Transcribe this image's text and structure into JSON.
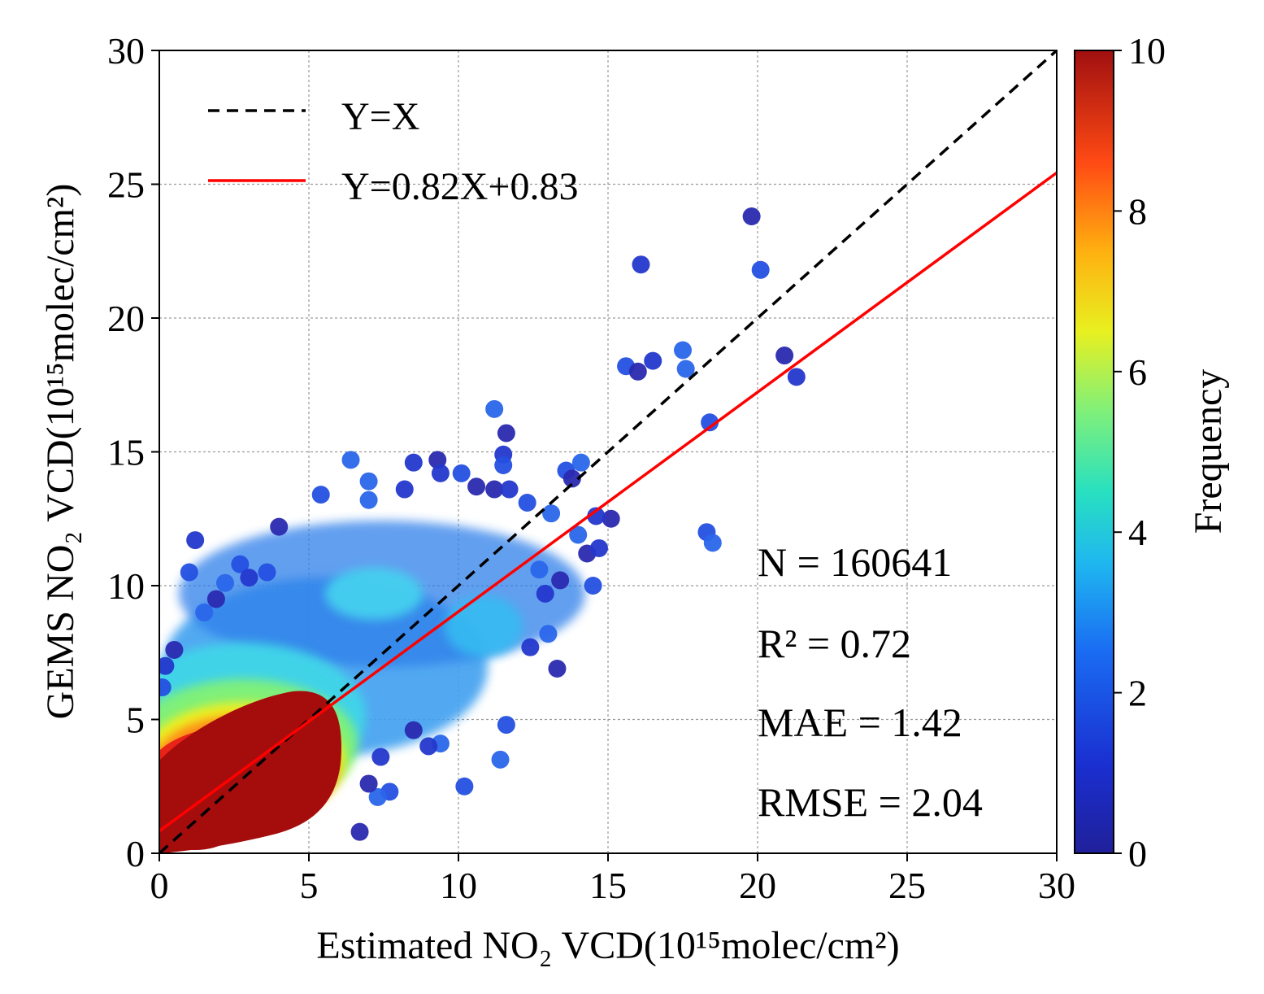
{
  "chart_data": {
    "type": "scatter",
    "xlabel": "Estimated NO₂ VCD(10¹⁵molec/cm²)",
    "ylabel": "GEMS NO₂ VCD(10¹⁵molec/cm²)",
    "xlim": [
      0,
      30
    ],
    "ylim": [
      0,
      30
    ],
    "xticks": [
      "0",
      "5",
      "10",
      "15",
      "20",
      "25",
      "30"
    ],
    "yticks": [
      "0",
      "5",
      "10",
      "15",
      "20",
      "25",
      "30"
    ],
    "grid": true,
    "legend": {
      "position": "top-left",
      "entries": [
        {
          "label": "Y=X",
          "style": "dashed",
          "color": "#000000",
          "slope": 1,
          "intercept": 0
        },
        {
          "label": "Y=0.82X+0.83",
          "style": "solid",
          "color": "#ff0000",
          "slope": 0.82,
          "intercept": 0.83
        }
      ]
    },
    "stats": {
      "n": "N = 160641",
      "r2": "R² = 0.72",
      "mae": "MAE = 1.42",
      "rmse": "RMSE = 2.04"
    },
    "colorbar": {
      "label": "Frequency",
      "range": [
        0,
        10
      ],
      "ticks": [
        "0",
        "2",
        "4",
        "6",
        "8",
        "10"
      ],
      "colormap": "jet"
    },
    "points": [
      [
        19.8,
        23.8,
        0.5
      ],
      [
        16.1,
        22.0,
        0.5
      ],
      [
        20.1,
        21.8,
        0.5
      ],
      [
        17.5,
        18.8,
        0.5
      ],
      [
        20.9,
        18.6,
        0.5
      ],
      [
        16.5,
        18.4,
        0.5
      ],
      [
        15.6,
        18.2,
        0.5
      ],
      [
        17.6,
        18.1,
        0.5
      ],
      [
        16.0,
        18.0,
        0.5
      ],
      [
        21.3,
        17.8,
        0.5
      ],
      [
        18.4,
        16.1,
        0.5
      ],
      [
        11.2,
        16.6,
        0.5
      ],
      [
        11.6,
        15.7,
        0.5
      ],
      [
        11.5,
        14.9,
        0.5
      ],
      [
        11.5,
        14.5,
        0.5
      ],
      [
        6.4,
        14.7,
        0.6
      ],
      [
        9.3,
        14.7,
        0.6
      ],
      [
        8.5,
        14.6,
        0.6
      ],
      [
        13.6,
        14.3,
        0.6
      ],
      [
        14.1,
        14.6,
        0.6
      ],
      [
        13.8,
        14.0,
        0.6
      ],
      [
        9.4,
        14.2,
        0.6
      ],
      [
        10.1,
        14.2,
        0.6
      ],
      [
        7.0,
        13.9,
        0.6
      ],
      [
        10.6,
        13.7,
        0.6
      ],
      [
        8.2,
        13.6,
        0.6
      ],
      [
        5.4,
        13.4,
        0.6
      ],
      [
        7.0,
        13.2,
        0.6
      ],
      [
        11.2,
        13.6,
        0.6
      ],
      [
        11.7,
        13.6,
        0.6
      ],
      [
        12.3,
        13.1,
        0.6
      ],
      [
        13.1,
        12.7,
        0.6
      ],
      [
        15.1,
        12.5,
        0.6
      ],
      [
        14.6,
        12.6,
        0.6
      ],
      [
        18.3,
        12.0,
        0.6
      ],
      [
        18.5,
        11.6,
        0.6
      ],
      [
        4.0,
        12.2,
        0.6
      ],
      [
        1.2,
        11.7,
        0.6
      ],
      [
        1.0,
        10.5,
        0.6
      ],
      [
        14.0,
        11.9,
        0.6
      ],
      [
        14.3,
        11.2,
        0.6
      ],
      [
        14.7,
        11.4,
        0.6
      ],
      [
        14.5,
        10.0,
        0.6
      ],
      [
        12.7,
        10.6,
        0.6
      ],
      [
        13.4,
        10.2,
        0.6
      ],
      [
        12.9,
        9.7,
        0.6
      ],
      [
        10.2,
        2.5,
        0.6
      ],
      [
        11.4,
        3.5,
        0.6
      ],
      [
        6.7,
        0.8,
        0.6
      ],
      [
        12.4,
        7.7,
        0.6
      ],
      [
        11.6,
        4.8,
        0.6
      ],
      [
        9.4,
        4.1,
        0.6
      ],
      [
        8.5,
        4.6,
        0.6
      ],
      [
        9.0,
        4.0,
        0.6
      ],
      [
        7.7,
        2.3,
        0.6
      ],
      [
        7.3,
        2.1,
        0.6
      ],
      [
        7.0,
        2.6,
        0.6
      ],
      [
        7.4,
        3.6,
        0.6
      ],
      [
        2.7,
        10.8,
        0.6
      ],
      [
        2.2,
        10.1,
        0.6
      ],
      [
        1.9,
        9.5,
        0.6
      ],
      [
        3.0,
        10.3,
        0.6
      ],
      [
        3.6,
        10.5,
        0.6
      ],
      [
        1.5,
        9.0,
        0.6
      ],
      [
        0.5,
        7.6,
        0.6
      ],
      [
        0.2,
        7.0,
        0.6
      ],
      [
        0.1,
        6.2,
        0.6
      ],
      [
        13.0,
        8.2,
        0.6
      ],
      [
        13.3,
        6.9,
        0.6
      ]
    ]
  }
}
